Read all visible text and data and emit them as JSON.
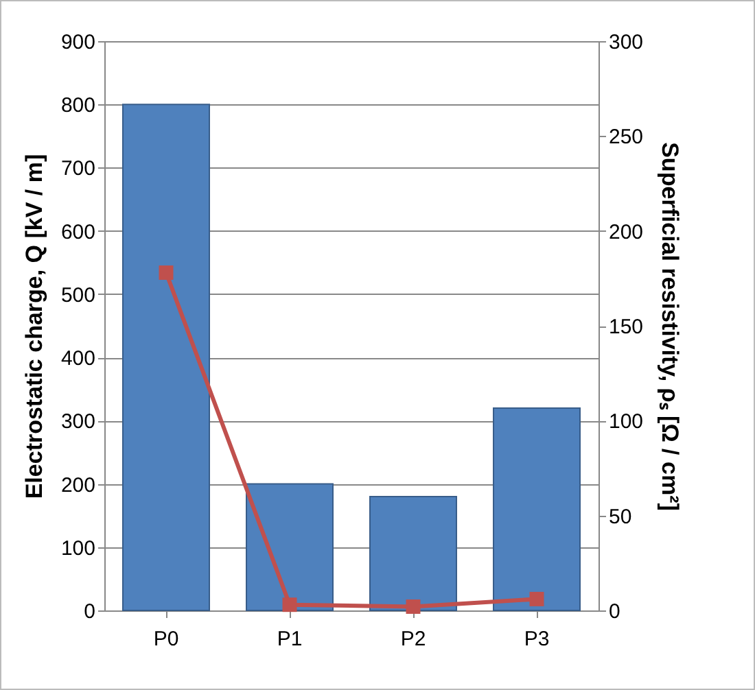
{
  "chart_data": {
    "type": "bar",
    "ylabel": "Electrostatic charge, Q [kV / m]",
    "y2label": "Superficial resistivity, ρₛ [Ω / cm²]",
    "categories": [
      "P0",
      "P1",
      "P2",
      "P3"
    ],
    "series": [
      {
        "color": "#4f81bd",
        "values": [
          800,
          200,
          180,
          320
        ]
      },
      {
        "type": "line",
        "axis": "y2",
        "color": "#c0504d",
        "values": [
          178,
          3,
          2,
          6
        ],
        "marker": "square",
        "line_style": "solid"
      }
    ],
    "ylim": [
      0,
      900
    ],
    "yticks": [
      0,
      100,
      200,
      300,
      400,
      500,
      600,
      700,
      800,
      900
    ],
    "y2lim": [
      0,
      300
    ],
    "y2ticks": [
      0,
      50,
      100,
      150,
      200,
      250,
      300
    ],
    "grid": "y"
  }
}
